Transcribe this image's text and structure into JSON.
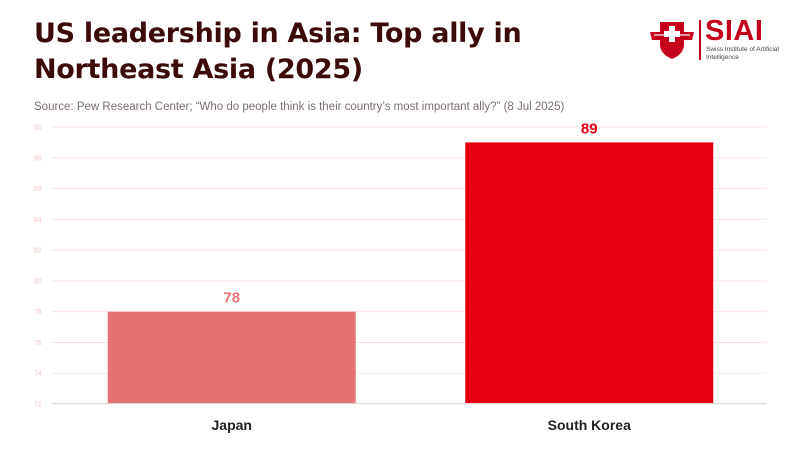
{
  "header": {
    "title": "US leadership in Asia: Top ally in Northeast Asia (2025)",
    "subtitle": "Source: Pew Research Center; “Who do people think is their country’s most important ally?” (8 Jul 2025)"
  },
  "logo": {
    "name": "SIAI",
    "subtitle": "Swiss Institute of Artificial Intelligence"
  },
  "colors": {
    "bar_japan": "#e57373",
    "bar_korea": "#e60012",
    "title": "#3d0a0a",
    "accent": "#c4001a"
  },
  "chart_data": {
    "type": "bar",
    "categories": [
      "Japan",
      "South Korea"
    ],
    "values": [
      78,
      89
    ],
    "data_labels": [
      "78",
      "89"
    ],
    "ylim": [
      72,
      90
    ],
    "yticks": [
      72,
      74,
      76,
      78,
      80,
      82,
      84,
      86,
      88,
      90
    ],
    "grid": true,
    "title": "US leadership in Asia: Top ally in Northeast Asia (2025)",
    "xlabel": "",
    "ylabel": ""
  }
}
